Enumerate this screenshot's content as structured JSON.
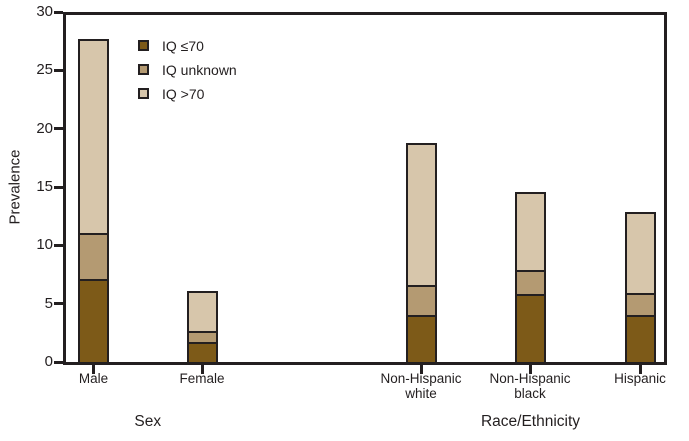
{
  "figure": {
    "y_axis": {
      "label": "Prevalence",
      "tick_labels": [
        "0",
        "5",
        "10",
        "15",
        "20",
        "25",
        "30"
      ],
      "min": 0,
      "max": 30
    },
    "x_groups": [
      {
        "label": "Sex",
        "categories": [
          "Male",
          "Female"
        ]
      },
      {
        "label": "Race/Ethnicity",
        "categories": [
          "Non-Hispanic white",
          "Non-Hispanic black",
          "Hispanic"
        ]
      }
    ],
    "legend": {
      "items": [
        {
          "label": "IQ ≤70",
          "color": "#7d5a18"
        },
        {
          "label": "IQ unknown",
          "color": "#b49a72"
        },
        {
          "label": "IQ >70",
          "color": "#d7c6ab"
        }
      ]
    },
    "colors": {
      "axis": "#231f20",
      "text": "#231f20",
      "iq_le_70": "#7d5a18",
      "iq_unknown": "#b49a72",
      "iq_gt_70": "#d7c6ab"
    }
  },
  "chart_data": {
    "type": "bar",
    "stacked": true,
    "title": "",
    "ylabel": "Prevalence",
    "ylim": [
      0,
      30
    ],
    "y_tick_step": 5,
    "grid": false,
    "legend_position": "inside-top-left",
    "categories": [
      "Male",
      "Female",
      "Non-Hispanic white",
      "Non-Hispanic black",
      "Hispanic"
    ],
    "category_groups": {
      "Sex": [
        "Male",
        "Female"
      ],
      "Race/Ethnicity": [
        "Non-Hispanic white",
        "Non-Hispanic black",
        "Hispanic"
      ]
    },
    "series": [
      {
        "name": "IQ ≤70",
        "color": "#7d5a18",
        "values": [
          7.1,
          1.7,
          4.0,
          5.9,
          4.0
        ]
      },
      {
        "name": "IQ unknown",
        "color": "#b49a72",
        "values": [
          3.8,
          0.8,
          2.4,
          1.9,
          1.8
        ]
      },
      {
        "name": "IQ >70",
        "color": "#d7c6ab",
        "values": [
          16.8,
          3.6,
          12.4,
          6.8,
          7.1
        ]
      }
    ],
    "totals": [
      27.7,
      6.1,
      18.8,
      14.6,
      12.9
    ]
  }
}
